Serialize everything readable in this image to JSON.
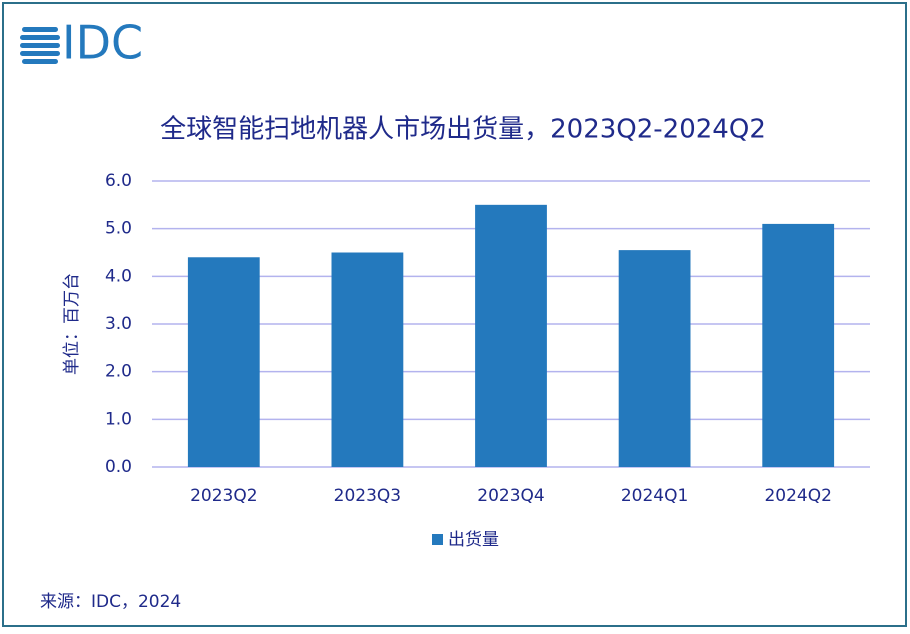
{
  "logo": "IDC",
  "chart_data": {
    "type": "bar",
    "title": "全球智能扫地机器人市场出货量，2023Q2-2024Q2",
    "y_label": "单位：百万台",
    "categories": [
      "2023Q2",
      "2023Q3",
      "2023Q4",
      "2024Q1",
      "2024Q2"
    ],
    "series": [
      {
        "name": "出货量",
        "color": "#2479bd",
        "values": [
          4.4,
          4.5,
          5.5,
          4.55,
          5.1
        ]
      }
    ],
    "ylim": [
      0,
      6
    ],
    "yticks": [
      {
        "value": 0,
        "label": "0.0"
      },
      {
        "value": 1,
        "label": "1.0"
      },
      {
        "value": 2,
        "label": "2.0"
      },
      {
        "value": 3,
        "label": "3.0"
      },
      {
        "value": 4,
        "label": "4.0"
      },
      {
        "value": 5,
        "label": "5.0"
      },
      {
        "value": 6,
        "label": "6.0"
      }
    ],
    "grid": true
  },
  "source": "来源：IDC，2024"
}
